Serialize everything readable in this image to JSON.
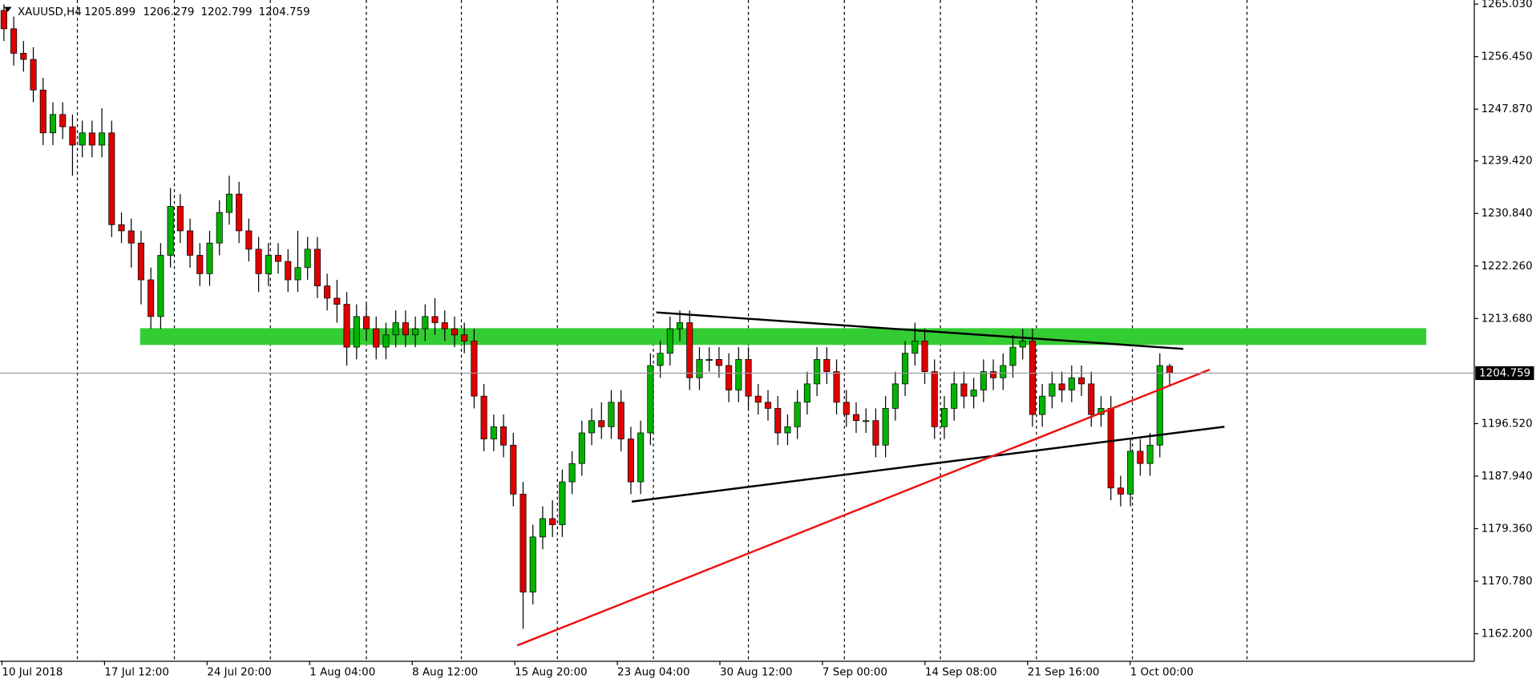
{
  "chart_data": {
    "type": "candlestick",
    "title": "XAUUSD,H4",
    "x_labels": [
      "10 Jul 2018",
      "17 Jul 12:00",
      "24 Jul 20:00",
      "1 Aug 04:00",
      "8 Aug 12:00",
      "15 Aug 20:00",
      "23 Aug 04:00",
      "30 Aug 12:00",
      "7 Sep 00:00",
      "14 Sep 08:00",
      "21 Sep 16:00",
      "1 Oct 00:00"
    ],
    "open": [
      1264,
      1261,
      1257,
      1256,
      1251,
      1244,
      1247,
      1245,
      1242,
      1244,
      1242,
      1244,
      1229,
      1228,
      1226,
      1220,
      1214,
      1224,
      1232,
      1228,
      1224,
      1221,
      1226,
      1231,
      1234,
      1228,
      1225,
      1221,
      1224,
      1223,
      1220,
      1222,
      1225,
      1219,
      1217,
      1216,
      1209,
      1214,
      1212,
      1209,
      1211,
      1213,
      1211,
      1212,
      1214,
      1213,
      1212,
      1211,
      1210,
      1201,
      1194,
      1196,
      1193,
      1185,
      1169,
      1178,
      1181,
      1180,
      1187,
      1190,
      1195,
      1197,
      1196,
      1200,
      1194,
      1187,
      1195,
      1206,
      1208,
      1212,
      1213,
      1204,
      1207,
      1207,
      1206,
      1202,
      1207,
      1201,
      1200,
      1199,
      1195,
      1196,
      1200,
      1203,
      1207,
      1205,
      1200,
      1198,
      1197,
      1197,
      1193,
      1199,
      1203,
      1208,
      1210,
      1205,
      1196,
      1199,
      1203,
      1201,
      1202,
      1205,
      1204,
      1206,
      1209,
      1210,
      1198,
      1201,
      1203,
      1202,
      1204,
      1203,
      1198,
      1199,
      1186,
      1185,
      1192,
      1190,
      1193,
      1205.899
    ],
    "high": [
      1265,
      1263,
      1259,
      1258,
      1253,
      1249,
      1249,
      1247,
      1246,
      1246,
      1248,
      1246,
      1231,
      1230,
      1228,
      1222,
      1226,
      1235,
      1234,
      1230,
      1226,
      1228,
      1233,
      1237,
      1236,
      1230,
      1227,
      1226,
      1226,
      1225,
      1228,
      1227,
      1227,
      1221,
      1220,
      1218,
      1216,
      1216,
      1214,
      1213,
      1215,
      1215,
      1214,
      1216,
      1217,
      1215,
      1214,
      1213,
      1212,
      1203,
      1198,
      1198,
      1195,
      1187,
      1180,
      1183,
      1184,
      1189,
      1192,
      1197,
      1199,
      1200,
      1202,
      1202,
      1196,
      1197,
      1208,
      1210,
      1214,
      1215,
      1215,
      1209,
      1209,
      1209,
      1208,
      1209,
      1209,
      1203,
      1202,
      1201,
      1198,
      1202,
      1205,
      1209,
      1209,
      1207,
      1202,
      1200,
      1199,
      1199,
      1201,
      1205,
      1210,
      1213,
      1212,
      1207,
      1201,
      1205,
      1205,
      1204,
      1207,
      1207,
      1208,
      1211,
      1212,
      1212,
      1203,
      1205,
      1205,
      1206,
      1206,
      1205,
      1201,
      1201,
      1188,
      1194,
      1194,
      1195,
      1208,
      1206.279
    ],
    "low": [
      1259,
      1255,
      1254,
      1249,
      1242,
      1242,
      1243,
      1237,
      1240,
      1240,
      1240,
      1227,
      1226,
      1222,
      1216,
      1212,
      1212,
      1222,
      1226,
      1222,
      1219,
      1219,
      1224,
      1229,
      1226,
      1223,
      1218,
      1219,
      1221,
      1218,
      1218,
      1220,
      1217,
      1215,
      1213,
      1206,
      1207,
      1210,
      1207,
      1207,
      1209,
      1209,
      1209,
      1210,
      1211,
      1210,
      1209,
      1208,
      1199,
      1192,
      1192,
      1191,
      1183,
      1163,
      1167,
      1176,
      1178,
      1178,
      1185,
      1188,
      1193,
      1194,
      1194,
      1192,
      1185,
      1185,
      1193,
      1204,
      1206,
      1210,
      1202,
      1202,
      1205,
      1204,
      1200,
      1200,
      1199,
      1198,
      1197,
      1193,
      1193,
      1194,
      1198,
      1201,
      1203,
      1198,
      1196,
      1195,
      1195,
      1191,
      1191,
      1197,
      1201,
      1206,
      1203,
      1194,
      1194,
      1197,
      1199,
      1199,
      1200,
      1202,
      1202,
      1204,
      1207,
      1196,
      1196,
      1199,
      1200,
      1200,
      1201,
      1196,
      1196,
      1184,
      1183,
      1183,
      1188,
      1188,
      1191,
      1202.799
    ],
    "close": [
      1261,
      1257,
      1256,
      1251,
      1244,
      1247,
      1245,
      1242,
      1244,
      1242,
      1244,
      1229,
      1228,
      1226,
      1220,
      1214,
      1224,
      1232,
      1228,
      1224,
      1221,
      1226,
      1231,
      1234,
      1228,
      1225,
      1221,
      1224,
      1223,
      1220,
      1222,
      1225,
      1219,
      1217,
      1216,
      1209,
      1214,
      1212,
      1209,
      1211,
      1213,
      1211,
      1212,
      1214,
      1213,
      1212,
      1211,
      1210,
      1201,
      1194,
      1196,
      1193,
      1185,
      1169,
      1178,
      1181,
      1180,
      1187,
      1190,
      1195,
      1197,
      1196,
      1200,
      1194,
      1187,
      1195,
      1206,
      1208,
      1212,
      1213,
      1204,
      1207,
      1207,
      1206,
      1202,
      1207,
      1201,
      1200,
      1199,
      1195,
      1196,
      1200,
      1203,
      1207,
      1205,
      1200,
      1198,
      1197,
      1197,
      1193,
      1199,
      1203,
      1208,
      1210,
      1205,
      1196,
      1199,
      1203,
      1201,
      1202,
      1205,
      1204,
      1206,
      1209,
      1210,
      1198,
      1201,
      1203,
      1202,
      1204,
      1203,
      1198,
      1199,
      1186,
      1185,
      1192,
      1190,
      1193,
      1206,
      1204.759
    ],
    "up_color": "#00b400",
    "down_color": "#e00000",
    "ylim": [
      1157.7,
      1265.7
    ],
    "yticks": [
      {
        "value": 1265.03,
        "label": "1265.030"
      },
      {
        "value": 1256.45,
        "label": "1256.450"
      },
      {
        "value": 1247.87,
        "label": "1247.870"
      },
      {
        "value": 1239.42,
        "label": "1239.420"
      },
      {
        "value": 1230.84,
        "label": "1230.840"
      },
      {
        "value": 1222.26,
        "label": "1222.260"
      },
      {
        "value": 1213.68,
        "label": "1213.680"
      },
      {
        "value": 1196.52,
        "label": "1196.520"
      },
      {
        "value": 1187.94,
        "label": "1187.940"
      },
      {
        "value": 1179.36,
        "label": "1179.360"
      },
      {
        "value": 1170.78,
        "label": "1170.780"
      },
      {
        "value": 1162.2,
        "label": "1162.200"
      }
    ],
    "grid": true
  }
}
